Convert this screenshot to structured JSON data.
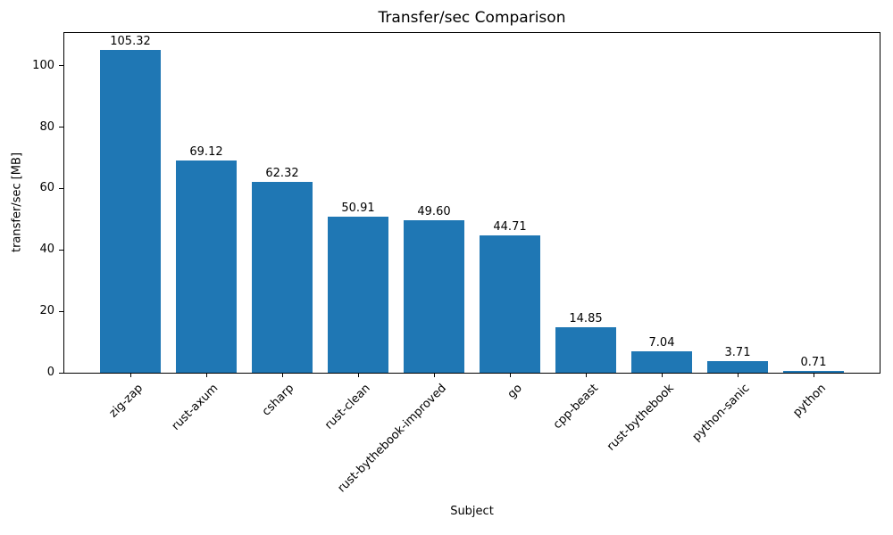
{
  "chart_data": {
    "type": "bar",
    "title": "Transfer/sec Comparison",
    "xlabel": "Subject",
    "ylabel": "transfer/sec [MB]",
    "categories": [
      "zig-zap",
      "rust-axum",
      "csharp",
      "rust-clean",
      "rust-bythebook-improved",
      "go",
      "cpp-beast",
      "rust-bythebook",
      "python-sanic",
      "python"
    ],
    "values": [
      105.32,
      69.12,
      62.32,
      50.91,
      49.6,
      44.71,
      14.85,
      7.04,
      3.71,
      0.71
    ],
    "value_label_decimals": 2,
    "bar_color": "#1f77b4",
    "axis_color": "#000000",
    "yticks": [
      0,
      20,
      40,
      60,
      80,
      100
    ],
    "ylim": [
      0,
      110.7
    ],
    "xtick_rotation_deg": 45,
    "grid": false,
    "legend_position": "none"
  }
}
